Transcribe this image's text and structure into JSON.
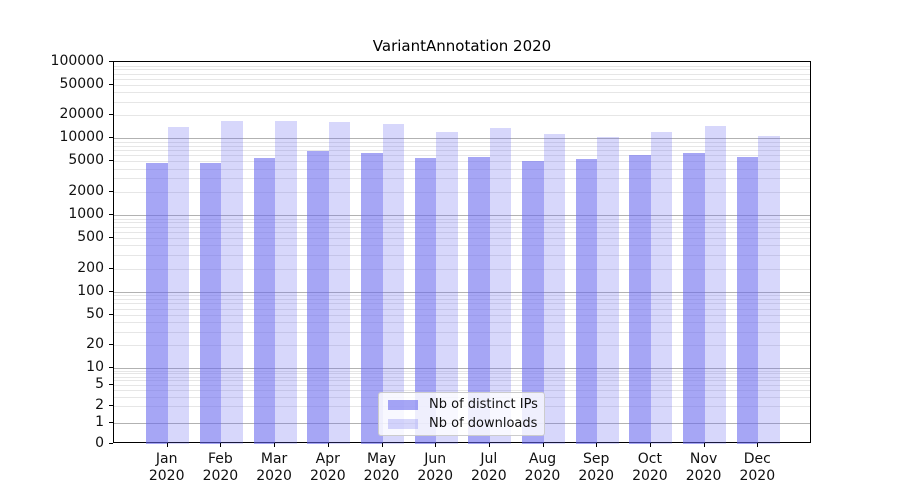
{
  "chart_data": {
    "type": "bar",
    "title": "VariantAnnotation 2020",
    "categories": [
      "Jan",
      "Feb",
      "Mar",
      "Apr",
      "May",
      "Jun",
      "Jul",
      "Aug",
      "Sep",
      "Oct",
      "Nov",
      "Dec"
    ],
    "xtick_second_line": "2020",
    "series": [
      {
        "name": "Nb of distinct IPs",
        "color": "rgba(102,102,238,0.58)",
        "values": [
          4800,
          4800,
          5500,
          6900,
          6400,
          5600,
          5700,
          5000,
          5400,
          6000,
          6500,
          5700
        ]
      },
      {
        "name": "Nb of downloads",
        "color": "rgba(102,102,238,0.26)",
        "values": [
          14200,
          16700,
          17100,
          16500,
          15400,
          12000,
          13800,
          11400,
          10300,
          12000,
          14400,
          10800
        ]
      }
    ],
    "xlabel": "",
    "ylabel": "",
    "yscale": "symlog",
    "ylim": [
      0,
      100000
    ],
    "yticks": [
      100000,
      50000,
      20000,
      10000,
      5000,
      2000,
      1000,
      500,
      200,
      100,
      50,
      20,
      10,
      5,
      2,
      1,
      0
    ],
    "grid": "horizontal, log minor lines, darker lines at powers of 10",
    "legend_position": "lower center inside plot",
    "colors": {
      "major_gridline": "#b2b2b2",
      "minor_gridline": "#e6e6e6",
      "axis_spine": "#000000",
      "text": "#111111"
    }
  }
}
